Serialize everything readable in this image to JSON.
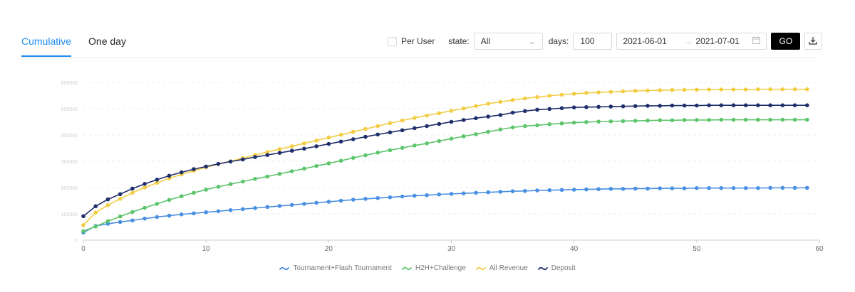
{
  "tabs": [
    {
      "label": "Cumulative",
      "active": true
    },
    {
      "label": "One day",
      "active": false
    }
  ],
  "toolbar": {
    "per_user_label": "Per User",
    "per_user_checked": false,
    "state_label": "state:",
    "state_value": "All",
    "days_label": "days:",
    "days_value": "100",
    "date_from": "2021-06-01",
    "date_to": "2021-07-01",
    "date_separator": "→",
    "go_label": "GO"
  },
  "icons": {
    "chevron": "chevron-down-icon",
    "calendar": "calendar-icon",
    "download": "download-icon",
    "arrow": "arrow-right-icon"
  },
  "chart_data": {
    "type": "line",
    "x": [
      0,
      1,
      2,
      3,
      4,
      5,
      6,
      7,
      8,
      9,
      10,
      11,
      12,
      13,
      14,
      15,
      16,
      17,
      18,
      19,
      20,
      21,
      22,
      23,
      24,
      25,
      26,
      27,
      28,
      29,
      30,
      31,
      32,
      33,
      34,
      35,
      36,
      37,
      38,
      39,
      40,
      41,
      42,
      43,
      44,
      45,
      46,
      47,
      48,
      49,
      50,
      51,
      52,
      53,
      54,
      55,
      56,
      57,
      58,
      59
    ],
    "xlim": [
      0,
      60
    ],
    "xticks": [
      0,
      10,
      20,
      30,
      40,
      50,
      60
    ],
    "ylim": [
      0,
      600
    ],
    "yticks": [
      0,
      100,
      200,
      300,
      400,
      500,
      600
    ],
    "ytick_labels": [
      "0",
      "100000",
      "200000",
      "300000",
      "400000",
      "500000",
      "600000"
    ],
    "grid": true,
    "legend_position": "bottom",
    "series": [
      {
        "name": "Tournament+Flash Tournament",
        "color": "#4a90e2",
        "values": [
          29,
          54,
          62,
          69,
          75,
          82,
          88,
          93,
          98,
          102,
          106,
          110,
          114,
          118,
          122,
          126,
          130,
          134,
          138,
          142,
          146,
          150,
          154,
          157,
          160,
          163,
          166,
          169,
          171,
          174,
          176,
          178,
          180,
          182,
          184,
          186,
          187,
          189,
          190,
          191,
          192,
          193,
          194,
          195,
          195,
          196,
          196,
          197,
          197,
          197,
          198,
          198,
          198,
          198,
          198,
          198,
          199,
          199,
          199,
          199
        ]
      },
      {
        "name": "H2H+Challenge",
        "color": "#5cc46b",
        "values": [
          34,
          52,
          72,
          90,
          107,
          123,
          138,
          153,
          167,
          180,
          192,
          203,
          213,
          223,
          233,
          242,
          252,
          262,
          272,
          282,
          292,
          302,
          313,
          323,
          333,
          342,
          351,
          360,
          368,
          377,
          386,
          395,
          403,
          412,
          421,
          429,
          434,
          437,
          441,
          444,
          447,
          449,
          451,
          452,
          453,
          454,
          455,
          456,
          456,
          457,
          457,
          457,
          458,
          458,
          458,
          458,
          458,
          458,
          458,
          458
        ]
      },
      {
        "name": "All Revenue",
        "color": "#f2cd44",
        "values": [
          57,
          105,
          133,
          157,
          180,
          200,
          218,
          235,
          250,
          264,
          277,
          289,
          300,
          312,
          324,
          335,
          346,
          357,
          368,
          379,
          390,
          401,
          412,
          423,
          434,
          445,
          455,
          465,
          474,
          483,
          492,
          501,
          510,
          519,
          526,
          533,
          539,
          544,
          549,
          553,
          557,
          560,
          562,
          564,
          566,
          568,
          569,
          570,
          571,
          572,
          572,
          573,
          573,
          573,
          573,
          574,
          574,
          574,
          574,
          574
        ]
      },
      {
        "name": "Deposit",
        "color": "#1f2f6b",
        "values": [
          91,
          129,
          155,
          175,
          196,
          214,
          230,
          245,
          258,
          270,
          280,
          290,
          299,
          307,
          316,
          324,
          332,
          340,
          348,
          357,
          366,
          375,
          384,
          393,
          402,
          410,
          418,
          426,
          434,
          442,
          450,
          457,
          464,
          470,
          476,
          485,
          491,
          496,
          499,
          502,
          505,
          506,
          507,
          508,
          509,
          510,
          511,
          511,
          512,
          512,
          512,
          513,
          513,
          513,
          513,
          513,
          513,
          513,
          513,
          513
        ]
      }
    ]
  }
}
